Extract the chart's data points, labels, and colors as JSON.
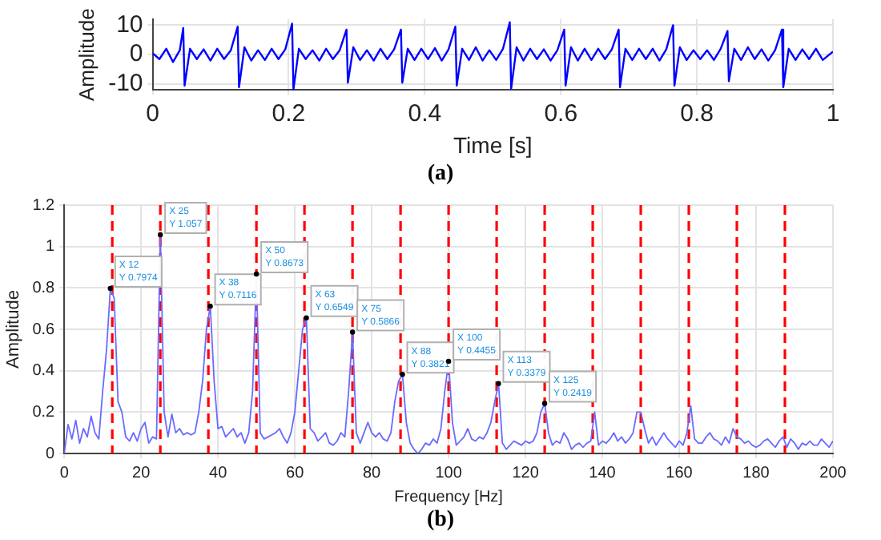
{
  "chart_data": [
    {
      "type": "line",
      "xlabel": "Time [s]",
      "ylabel": "Amplitude",
      "color": "#0000ff",
      "grid": true,
      "marker": "none",
      "annotations": [
        "(a)"
      ],
      "xlim": [
        0,
        1
      ],
      "xticks": [
        0,
        0.2,
        0.4,
        0.6,
        0.8,
        1
      ],
      "ylim": [
        -12,
        12
      ],
      "yticks": [
        -10,
        0,
        10
      ],
      "x": [
        0,
        0.01,
        0.02,
        0.03,
        0.04,
        0.045,
        0.047,
        0.055,
        0.065,
        0.075,
        0.085,
        0.095,
        0.105,
        0.115,
        0.125,
        0.127,
        0.135,
        0.145,
        0.155,
        0.165,
        0.175,
        0.185,
        0.195,
        0.205,
        0.207,
        0.215,
        0.225,
        0.235,
        0.245,
        0.255,
        0.265,
        0.275,
        0.285,
        0.287,
        0.295,
        0.305,
        0.315,
        0.325,
        0.335,
        0.345,
        0.355,
        0.365,
        0.367,
        0.375,
        0.385,
        0.395,
        0.405,
        0.415,
        0.425,
        0.435,
        0.445,
        0.447,
        0.455,
        0.465,
        0.475,
        0.485,
        0.495,
        0.505,
        0.515,
        0.525,
        0.527,
        0.535,
        0.545,
        0.555,
        0.565,
        0.575,
        0.585,
        0.595,
        0.605,
        0.607,
        0.615,
        0.625,
        0.635,
        0.645,
        0.655,
        0.665,
        0.675,
        0.685,
        0.687,
        0.695,
        0.705,
        0.715,
        0.725,
        0.735,
        0.745,
        0.755,
        0.765,
        0.767,
        0.775,
        0.785,
        0.795,
        0.805,
        0.815,
        0.825,
        0.835,
        0.845,
        0.847,
        0.855,
        0.865,
        0.875,
        0.885,
        0.895,
        0.905,
        0.915,
        0.925,
        0.927,
        0.935,
        0.945,
        0.955,
        0.965,
        0.975,
        0.985,
        1
      ],
      "values": [
        0.5,
        -1.5,
        2,
        -2.5,
        1.5,
        9,
        -10.5,
        2,
        -1.5,
        1.8,
        -2,
        2,
        -1.5,
        1.5,
        9.5,
        -11,
        2.5,
        -2,
        1.5,
        -1.8,
        2,
        -1.5,
        1.8,
        10.5,
        -11.8,
        2,
        -1.5,
        1.5,
        -2,
        2,
        -1.5,
        1.5,
        8.5,
        -9.5,
        2.5,
        -1.8,
        1.5,
        -2,
        2,
        -1.5,
        1.8,
        8.5,
        -9.5,
        2,
        -1.8,
        2,
        -1.5,
        2.2,
        -2,
        1.8,
        9.5,
        -10.5,
        2,
        -1.8,
        2.5,
        -2,
        1.5,
        -1.8,
        2,
        11,
        -11.5,
        2.5,
        -2,
        2,
        -1.5,
        1.8,
        -2,
        1.5,
        8.5,
        -10.5,
        2.5,
        -2,
        2,
        -1.8,
        2,
        -1.5,
        1.8,
        8.5,
        -11,
        2,
        -1.8,
        2,
        -1.5,
        2,
        -2,
        1.8,
        10,
        -10.5,
        2.5,
        -1.8,
        1.5,
        -1.5,
        1.5,
        -1.8,
        2,
        8,
        -9,
        2,
        -1.8,
        2.5,
        -1.5,
        1.8,
        -2,
        1.5,
        8.5,
        -11,
        2,
        -1.8,
        1.8,
        -1.5,
        2,
        -1.8,
        1
      ]
    },
    {
      "type": "line",
      "xlabel": "Frequency [Hz]",
      "ylabel": "Amplitude",
      "color": "#6a6aff",
      "grid": true,
      "marker": "none",
      "xlim": [
        0,
        200
      ],
      "xticks": [
        0,
        20,
        40,
        60,
        80,
        100,
        120,
        140,
        160,
        180,
        200
      ],
      "ylim": [
        0,
        1.2
      ],
      "yticks": [
        0,
        0.2,
        0.4,
        0.6,
        0.8,
        1,
        1.2
      ],
      "ref_lines": [
        {
          "axis": "x",
          "value": 12.5,
          "color": "#ff0000",
          "line_style": "dashed"
        },
        {
          "axis": "x",
          "value": 25,
          "color": "#ff0000",
          "line_style": "dashed"
        },
        {
          "axis": "x",
          "value": 37.5,
          "color": "#ff0000",
          "line_style": "dashed"
        },
        {
          "axis": "x",
          "value": 50,
          "color": "#ff0000",
          "line_style": "dashed"
        },
        {
          "axis": "x",
          "value": 62.5,
          "color": "#ff0000",
          "line_style": "dashed"
        },
        {
          "axis": "x",
          "value": 75,
          "color": "#ff0000",
          "line_style": "dashed"
        },
        {
          "axis": "x",
          "value": 87.5,
          "color": "#ff0000",
          "line_style": "dashed"
        },
        {
          "axis": "x",
          "value": 100,
          "color": "#ff0000",
          "line_style": "dashed"
        },
        {
          "axis": "x",
          "value": 112.5,
          "color": "#ff0000",
          "line_style": "dashed"
        },
        {
          "axis": "x",
          "value": 125,
          "color": "#ff0000",
          "line_style": "dashed"
        },
        {
          "axis": "x",
          "value": 137.5,
          "color": "#ff0000",
          "line_style": "dashed"
        },
        {
          "axis": "x",
          "value": 150,
          "color": "#ff0000",
          "line_style": "dashed"
        },
        {
          "axis": "x",
          "value": 162.5,
          "color": "#ff0000",
          "line_style": "dashed"
        },
        {
          "axis": "x",
          "value": 175,
          "color": "#ff0000",
          "line_style": "dashed"
        },
        {
          "axis": "x",
          "value": 187.5,
          "color": "#ff0000",
          "line_style": "dashed"
        }
      ],
      "annotations": [
        {
          "text": "X 12\nY 0.7974",
          "x": 12,
          "y": 0.7974
        },
        {
          "text": "X 25\nY 1.057",
          "x": 25,
          "y": 1.057
        },
        {
          "text": "X 38\nY 0.7116",
          "x": 38,
          "y": 0.7116
        },
        {
          "text": "X 50\nY 0.8673",
          "x": 50,
          "y": 0.8673
        },
        {
          "text": "X 63\nY 0.6549",
          "x": 63,
          "y": 0.6549
        },
        {
          "text": "X 75\nY 0.5866",
          "x": 75,
          "y": 0.5866
        },
        {
          "text": "X 88\nY 0.3821",
          "x": 88,
          "y": 0.3821
        },
        {
          "text": "X 100\nY 0.4455",
          "x": 100,
          "y": 0.4455
        },
        {
          "text": "X 113\nY 0.3379",
          "x": 113,
          "y": 0.3379
        },
        {
          "text": "X 125\nY 0.2419",
          "x": 125,
          "y": 0.2419
        },
        "(b)"
      ],
      "x": [
        0,
        1,
        2,
        3,
        4,
        5,
        6,
        7,
        8,
        9,
        10,
        11,
        12,
        13,
        14,
        15,
        16,
        17,
        18,
        19,
        20,
        21,
        22,
        23,
        24,
        25,
        26,
        27,
        28,
        29,
        30,
        31,
        32,
        33,
        34,
        35,
        36,
        37,
        38,
        39,
        40,
        41,
        42,
        43,
        44,
        45,
        46,
        47,
        48,
        49,
        50,
        51,
        52,
        53,
        54,
        55,
        56,
        57,
        58,
        59,
        60,
        61,
        62,
        63,
        64,
        65,
        66,
        67,
        68,
        69,
        70,
        71,
        72,
        73,
        74,
        75,
        76,
        77,
        78,
        79,
        80,
        81,
        82,
        83,
        84,
        85,
        86,
        87,
        88,
        89,
        90,
        91,
        92,
        93,
        94,
        95,
        96,
        97,
        98,
        99,
        100,
        101,
        102,
        103,
        104,
        105,
        106,
        107,
        108,
        109,
        110,
        111,
        112,
        113,
        114,
        115,
        116,
        117,
        118,
        119,
        120,
        121,
        122,
        123,
        124,
        125,
        126,
        127,
        128,
        129,
        130,
        131,
        132,
        133,
        134,
        135,
        136,
        137,
        138,
        139,
        140,
        141,
        142,
        143,
        144,
        145,
        146,
        147,
        148,
        149,
        150,
        151,
        152,
        153,
        154,
        155,
        156,
        157,
        158,
        159,
        160,
        161,
        162,
        163,
        164,
        165,
        166,
        167,
        168,
        169,
        170,
        171,
        172,
        173,
        174,
        175,
        176,
        177,
        178,
        179,
        180,
        181,
        182,
        183,
        184,
        185,
        186,
        187,
        188,
        189,
        190,
        191,
        192,
        193,
        194,
        195,
        196,
        197,
        198,
        199,
        200
      ],
      "values": [
        0,
        0.14,
        0.07,
        0.16,
        0.05,
        0.12,
        0.08,
        0.18,
        0.1,
        0.07,
        0.3,
        0.5,
        0.7974,
        0.75,
        0.25,
        0.2,
        0.08,
        0.06,
        0.1,
        0.06,
        0.12,
        0.15,
        0.05,
        0.08,
        0.07,
        1.057,
        0.2,
        0.08,
        0.19,
        0.1,
        0.12,
        0.09,
        0.1,
        0.09,
        0.1,
        0.2,
        0.35,
        0.6,
        0.7116,
        0.35,
        0.12,
        0.13,
        0.08,
        0.1,
        0.12,
        0.08,
        0.1,
        0.05,
        0.1,
        0.3,
        0.8673,
        0.1,
        0.07,
        0.08,
        0.09,
        0.1,
        0.12,
        0.08,
        0.05,
        0.1,
        0.2,
        0.4,
        0.6,
        0.6549,
        0.12,
        0.1,
        0.06,
        0.08,
        0.1,
        0.05,
        0.04,
        0.06,
        0.1,
        0.08,
        0.3,
        0.5866,
        0.1,
        0.05,
        0.1,
        0.15,
        0.1,
        0.08,
        0.1,
        0.07,
        0.06,
        0.1,
        0.25,
        0.35,
        0.3821,
        0.15,
        0.05,
        0.02,
        0,
        0.02,
        0.05,
        0.04,
        0.07,
        0.05,
        0.12,
        0.3,
        0.4455,
        0.15,
        0.04,
        0.06,
        0.08,
        0.12,
        0.07,
        0.06,
        0.08,
        0.07,
        0.1,
        0.15,
        0.25,
        0.3379,
        0.05,
        0.02,
        0.04,
        0.06,
        0.05,
        0.04,
        0.06,
        0.05,
        0.06,
        0.1,
        0.2,
        0.2419,
        0.1,
        0.04,
        0.06,
        0.05,
        0.1,
        0.07,
        0.02,
        0.04,
        0.05,
        0.03,
        0.05,
        0.06,
        0.2,
        0.04,
        0.06,
        0.05,
        0.07,
        0.1,
        0.06,
        0.08,
        0.05,
        0.07,
        0.1,
        0.2,
        0.2,
        0.12,
        0.05,
        0.08,
        0.04,
        0.07,
        0.1,
        0.07,
        0.05,
        0.03,
        0.06,
        0.04,
        0.1,
        0.23,
        0.07,
        0.05,
        0.05,
        0.08,
        0.1,
        0.07,
        0.06,
        0.04,
        0.08,
        0.05,
        0.12,
        0.08,
        0.07,
        0.05,
        0.06,
        0.04,
        0.03,
        0.04,
        0.06,
        0.07,
        0.05,
        0.03,
        0.06,
        0.08,
        0.03,
        0.07,
        0.05,
        0.02,
        0.05,
        0.04,
        0.06,
        0.04,
        0.04,
        0.07,
        0.05,
        0.03,
        0.06
      ]
    }
  ]
}
